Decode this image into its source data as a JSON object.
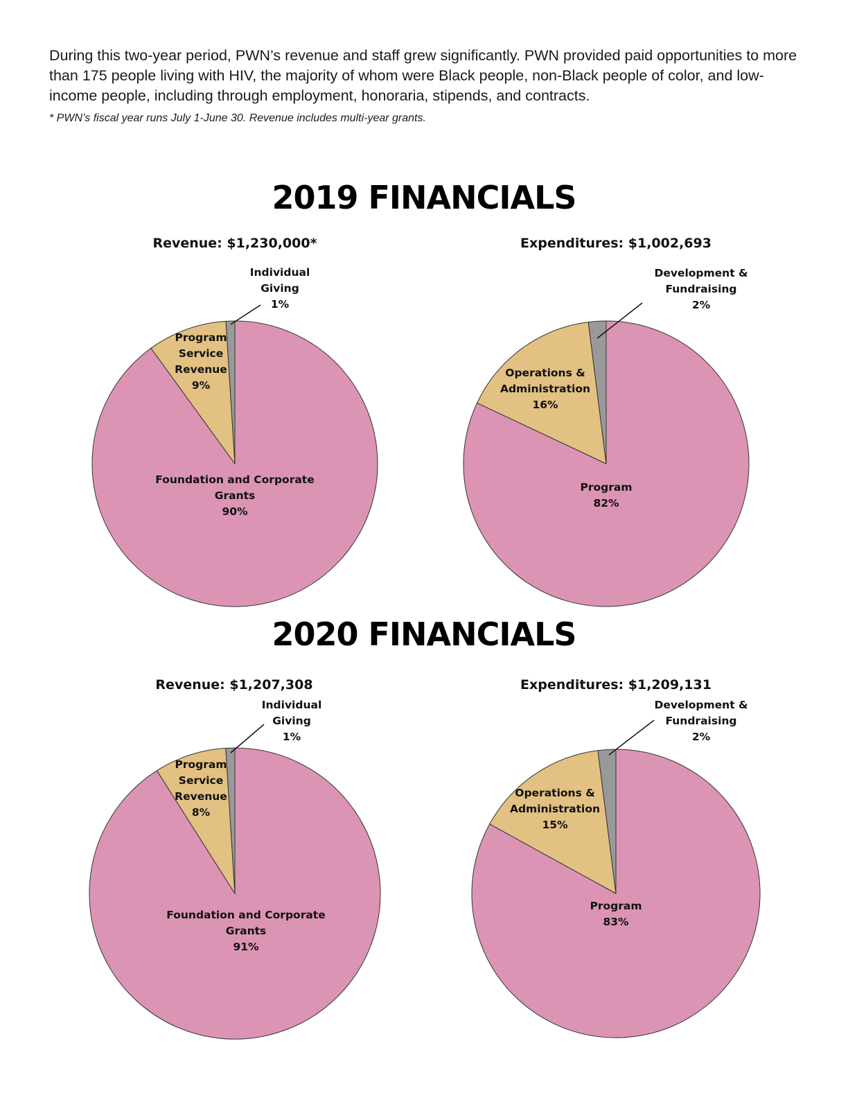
{
  "intro": {
    "paragraph": "During this two-year period, PWN’s revenue and staff grew significantly. PWN provided paid opportunities to more than 175 people living with HIV, the majority of whom were Black people, non-Black people of color, and low-income people, including through employment, honoraria, stipends, and contracts.",
    "footnote": "* PWN’s fiscal year runs July 1-June 30. Revenue includes multi-year grants."
  },
  "sections": [
    {
      "title": "2019 FINANCIALS"
    },
    {
      "title": "2020 FINANCIALS"
    }
  ],
  "colors": {
    "pink": "#dc94b4",
    "tan": "#e3c182",
    "gray": "#999999",
    "outline": "#333333"
  },
  "chart_data": [
    {
      "type": "pie",
      "title": "Revenue: $1,230,000*",
      "slices": [
        {
          "label": [
            "Foundation and Corporate",
            "Grants",
            "90%"
          ],
          "value": 90,
          "color": "pink"
        },
        {
          "label": [
            "Program",
            "Service",
            "Revenue",
            "9%"
          ],
          "value": 9,
          "color": "tan"
        },
        {
          "label": [
            "Individual",
            "Giving",
            "1%"
          ],
          "value": 1,
          "color": "gray",
          "callout": true
        }
      ]
    },
    {
      "type": "pie",
      "title": "Expenditures: $1,002,693",
      "slices": [
        {
          "label": [
            "Program",
            "82%"
          ],
          "value": 82,
          "color": "pink"
        },
        {
          "label": [
            "Operations &",
            "Administration",
            "16%"
          ],
          "value": 16,
          "color": "tan"
        },
        {
          "label": [
            "Development &",
            "Fundraising",
            "2%"
          ],
          "value": 2,
          "color": "gray",
          "callout": true
        }
      ]
    },
    {
      "type": "pie",
      "title": "Revenue: $1,207,308",
      "slices": [
        {
          "label": [
            "Foundation and Corporate",
            "Grants",
            "91%"
          ],
          "value": 91,
          "color": "pink"
        },
        {
          "label": [
            "Program",
            "Service",
            "Revenue",
            "8%"
          ],
          "value": 8,
          "color": "tan"
        },
        {
          "label": [
            "Individual",
            "Giving",
            "1%"
          ],
          "value": 1,
          "color": "gray",
          "callout": true
        }
      ]
    },
    {
      "type": "pie",
      "title": "Expenditures: $1,209,131",
      "slices": [
        {
          "label": [
            "Program",
            "83%"
          ],
          "value": 83,
          "color": "pink"
        },
        {
          "label": [
            "Operations &",
            "Administration",
            "15%"
          ],
          "value": 15,
          "color": "tan"
        },
        {
          "label": [
            "Development &",
            "Fundraising",
            "2%"
          ],
          "value": 2,
          "color": "gray",
          "callout": true
        }
      ]
    }
  ]
}
